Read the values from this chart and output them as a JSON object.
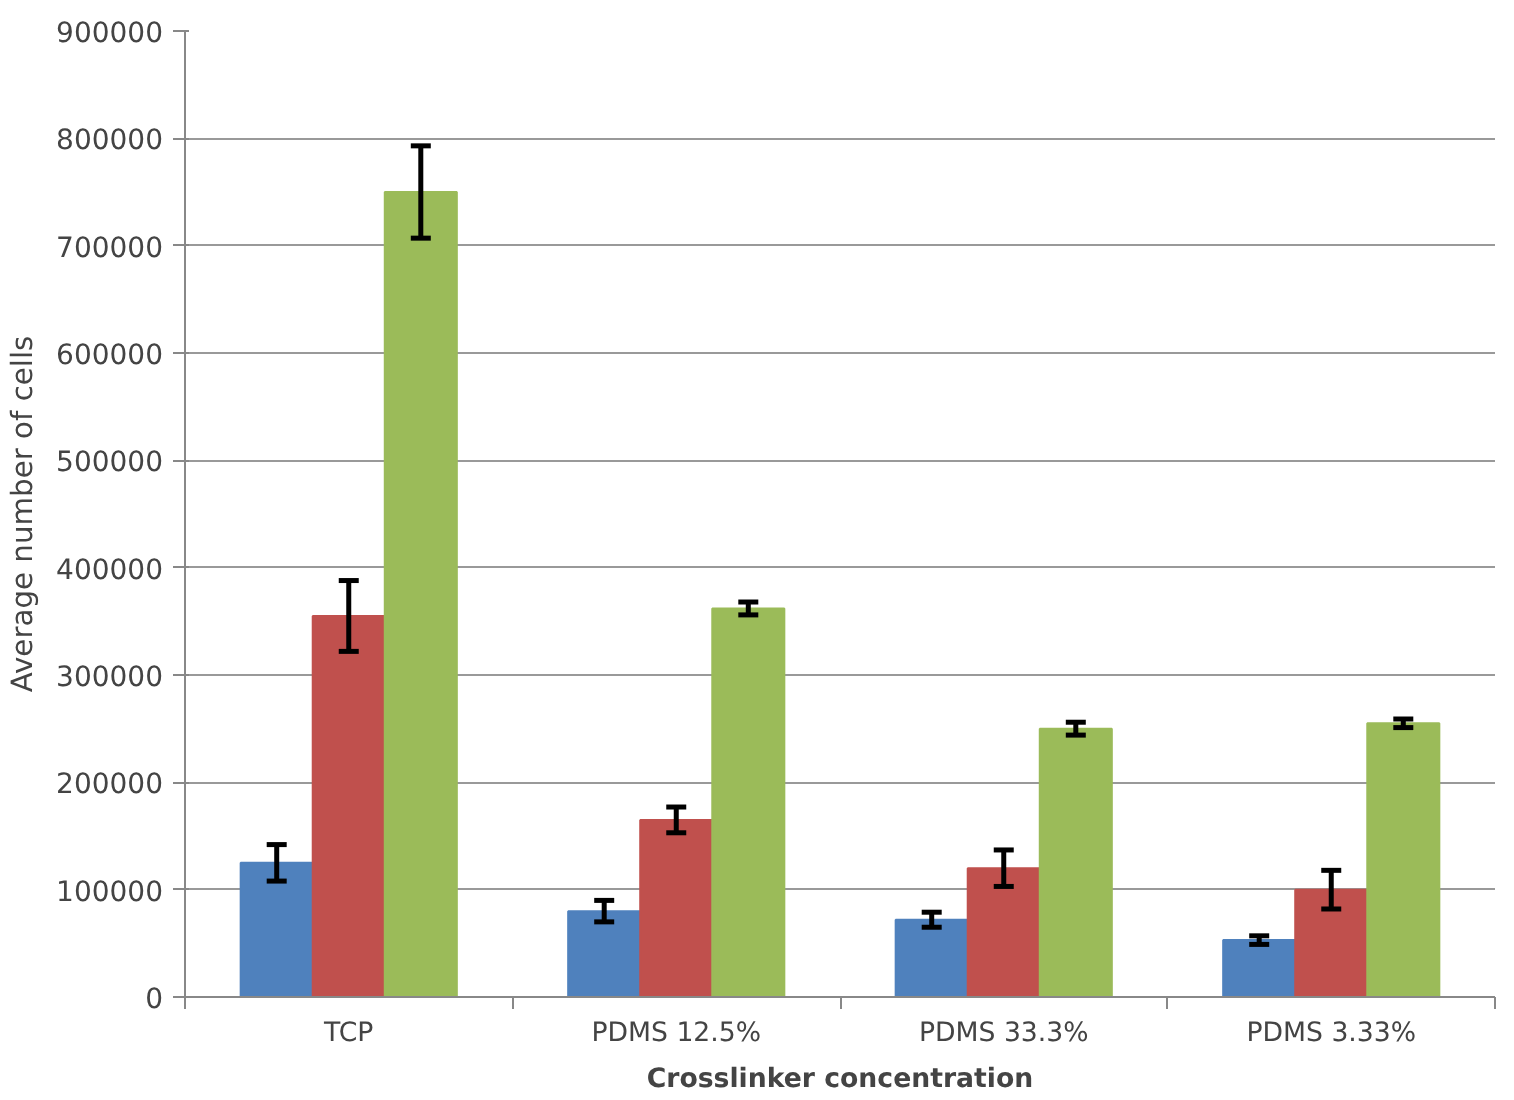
{
  "chart_data": {
    "type": "bar",
    "xlabel": "Crosslinker concentration",
    "ylabel": "Average number of cells",
    "categories": [
      "TCP",
      "PDMS 12.5%",
      "PDMS 33.3%",
      "PDMS 3.33%"
    ],
    "series": [
      {
        "color": "#4f81bd",
        "values": [
          125000,
          80000,
          72000,
          53000
        ],
        "errors": [
          17000,
          10000,
          7000,
          4000
        ]
      },
      {
        "color": "#c0504d",
        "values": [
          355000,
          165000,
          120000,
          100000
        ],
        "errors": [
          33000,
          12000,
          17000,
          18000
        ]
      },
      {
        "color": "#9bbb59",
        "values": [
          750000,
          362000,
          250000,
          255000
        ],
        "errors": [
          43000,
          6000,
          6000,
          4000
        ]
      }
    ],
    "ylim": [
      0,
      900000
    ],
    "yticks": [
      0,
      100000,
      200000,
      300000,
      400000,
      500000,
      600000,
      700000,
      800000,
      900000
    ],
    "grid": "y"
  }
}
